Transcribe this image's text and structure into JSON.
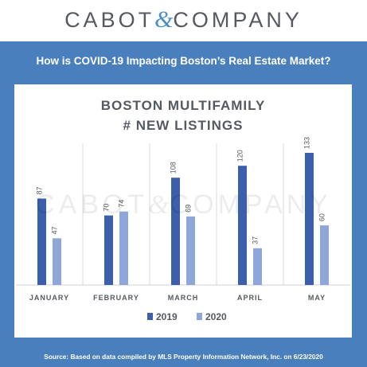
{
  "brand": {
    "name_left": "CABOT",
    "amp": "&",
    "name_right": "COMPANY"
  },
  "header": {
    "title": "How is COVID-19 Impacting Boston’s Real Estate Market?"
  },
  "footer": {
    "source": "Source: Based on data compiled by MLS Property Information Network, Inc. on 6/23/2020"
  },
  "watermark": {
    "left": "CABOT",
    "amp": "&",
    "right": "COMPANY"
  },
  "colors": {
    "frame": "#4a7fbd",
    "series_2019": "#3b5fab",
    "series_2020": "#8fa7d8",
    "logo_text": "#555a60"
  },
  "chart_data": {
    "type": "bar",
    "title_line1": "BOSTON MULTIFAMILY",
    "title_line2": "# NEW LISTINGS",
    "categories": [
      "JANUARY",
      "FEBRUARY",
      "MARCH",
      "APRIL",
      "MAY"
    ],
    "series": [
      {
        "name": "2019",
        "values": [
          87,
          70,
          108,
          120,
          133
        ]
      },
      {
        "name": "2020",
        "values": [
          47,
          74,
          69,
          37,
          60
        ]
      }
    ],
    "ylim": [
      0,
      140
    ],
    "legend_position": "bottom",
    "grid": false,
    "data_labels": true
  }
}
